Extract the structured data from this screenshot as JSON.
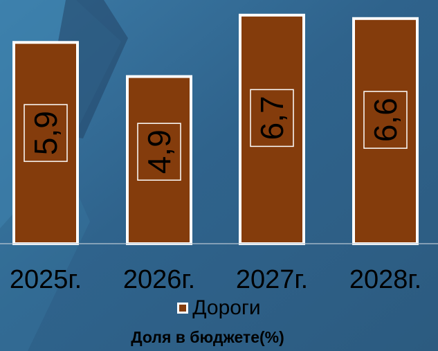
{
  "chart_data": {
    "type": "bar",
    "title": "Доля в бюджете(%)",
    "categories": [
      "2025г.",
      "2026г.",
      "2027г.",
      "2028г."
    ],
    "series": [
      {
        "name": "Дороги",
        "values": [
          5.9,
          4.9,
          6.7,
          6.6
        ],
        "labels": [
          "5,9",
          "4,9",
          "6,7",
          "6,6"
        ]
      }
    ],
    "ylim": [
      0,
      6.9
    ],
    "grid": false,
    "legend": "bottom",
    "colors": {
      "bar": "#843c0c",
      "bar_border": "#ffffff",
      "background": "#2e5f86"
    }
  }
}
